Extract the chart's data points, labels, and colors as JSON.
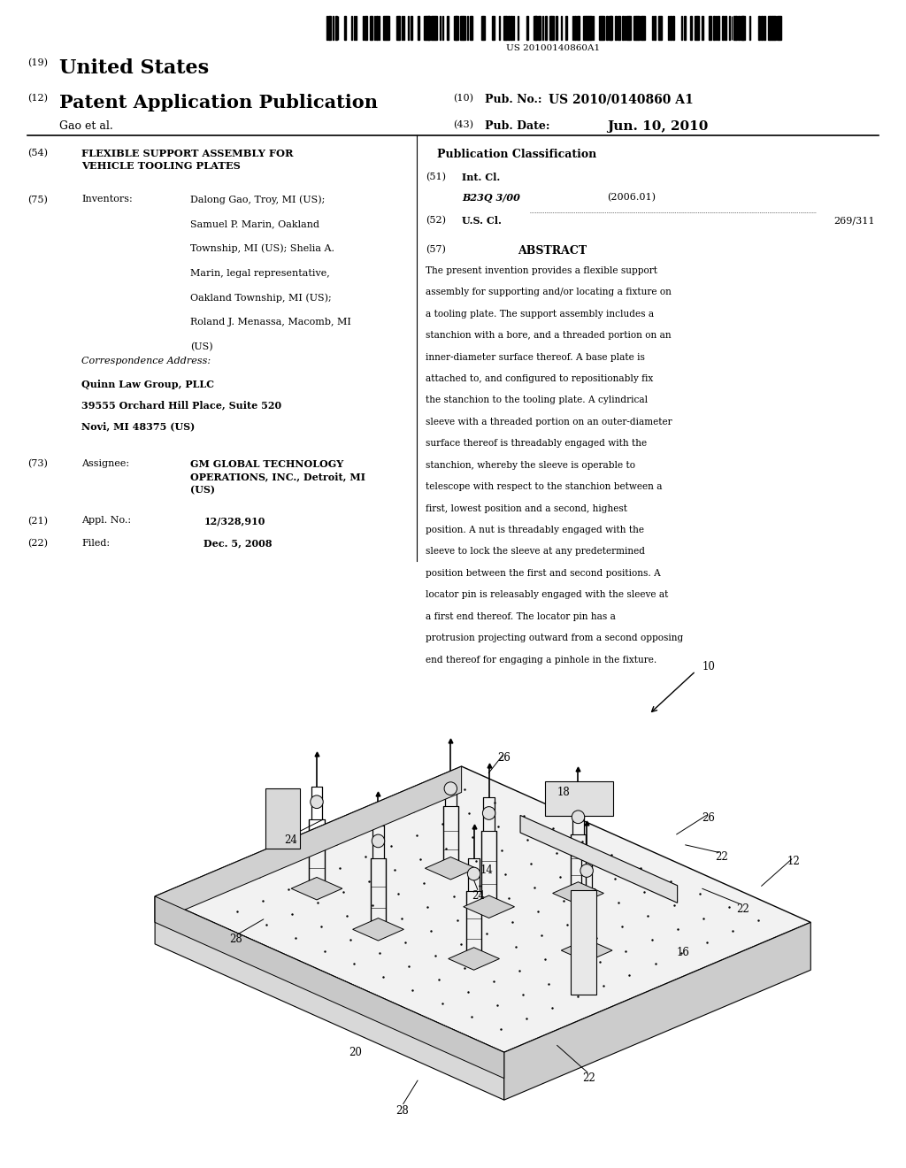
{
  "background_color": "#ffffff",
  "barcode_text": "US 20100140860A1",
  "title_19": "(19)",
  "title_19_text": "United States",
  "title_12": "(12)",
  "title_12_text": "Patent Application Publication",
  "title_10": "(10)",
  "pub_no_label": "Pub. No.:",
  "pub_no": "US 2010/0140860 A1",
  "inventor_line": "Gao et al.",
  "title_43": "(43)",
  "pub_date_label": "Pub. Date:",
  "pub_date": "Jun. 10, 2010",
  "section_54_num": "(54)",
  "section_54_title": "FLEXIBLE SUPPORT ASSEMBLY FOR\nVEHICLE TOOLING PLATES",
  "section_75_num": "(75)",
  "section_75_label": "Inventors:",
  "section_75_text": "Dalong Gao, Troy, MI (US);\nSamuel P. Marin, Oakland\nTownship, MI (US); Shelia A.\nMarin, legal representative,\nOakland Township, MI (US);\nRoland J. Menassa, Macomb, MI\n(US)",
  "corr_label": "Correspondence Address:",
  "corr_line1": "Quinn Law Group, PLLC",
  "corr_line2": "39555 Orchard Hill Place, Suite 520",
  "corr_line3": "Novi, MI 48375 (US)",
  "section_73_num": "(73)",
  "section_73_label": "Assignee:",
  "section_73_text": "GM GLOBAL TECHNOLOGY\nOPERATIONS, INC., Detroit, MI\n(US)",
  "section_21_num": "(21)",
  "section_21_label": "Appl. No.:",
  "section_21_text": "12/328,910",
  "section_22_num": "(22)",
  "section_22_label": "Filed:",
  "section_22_text": "Dec. 5, 2008",
  "pub_class_title": "Publication Classification",
  "section_51_num": "(51)",
  "section_51_label": "Int. Cl.",
  "section_51_class": "B23Q 3/00",
  "section_51_year": "(2006.01)",
  "section_52_num": "(52)",
  "section_52_label": "U.S. Cl.",
  "section_52_text": "269/311",
  "section_57_num": "(57)",
  "section_57_label": "ABSTRACT",
  "abstract_text": "The present invention provides a flexible support assembly for supporting and/or locating a fixture on a tooling plate. The support assembly includes a stanchion with a bore, and a threaded portion on an inner-diameter surface thereof. A base plate is attached to, and configured to repositionably fix the stanchion to the tooling plate. A cylindrical sleeve with a threaded portion on an outer-diameter surface thereof is threadably engaged with the stanchion, whereby the sleeve is operable to telescope with respect to the stanchion between a first, lowest position and a second, highest position. A nut is threadably engaged with the sleeve to lock the sleeve at any predetermined position between the first and second positions. A locator pin is releasably engaged with the sleeve at a first end thereof. The locator pin has a protrusion projecting outward from a second opposing end thereof for engaging a pinhole in the fixture."
}
